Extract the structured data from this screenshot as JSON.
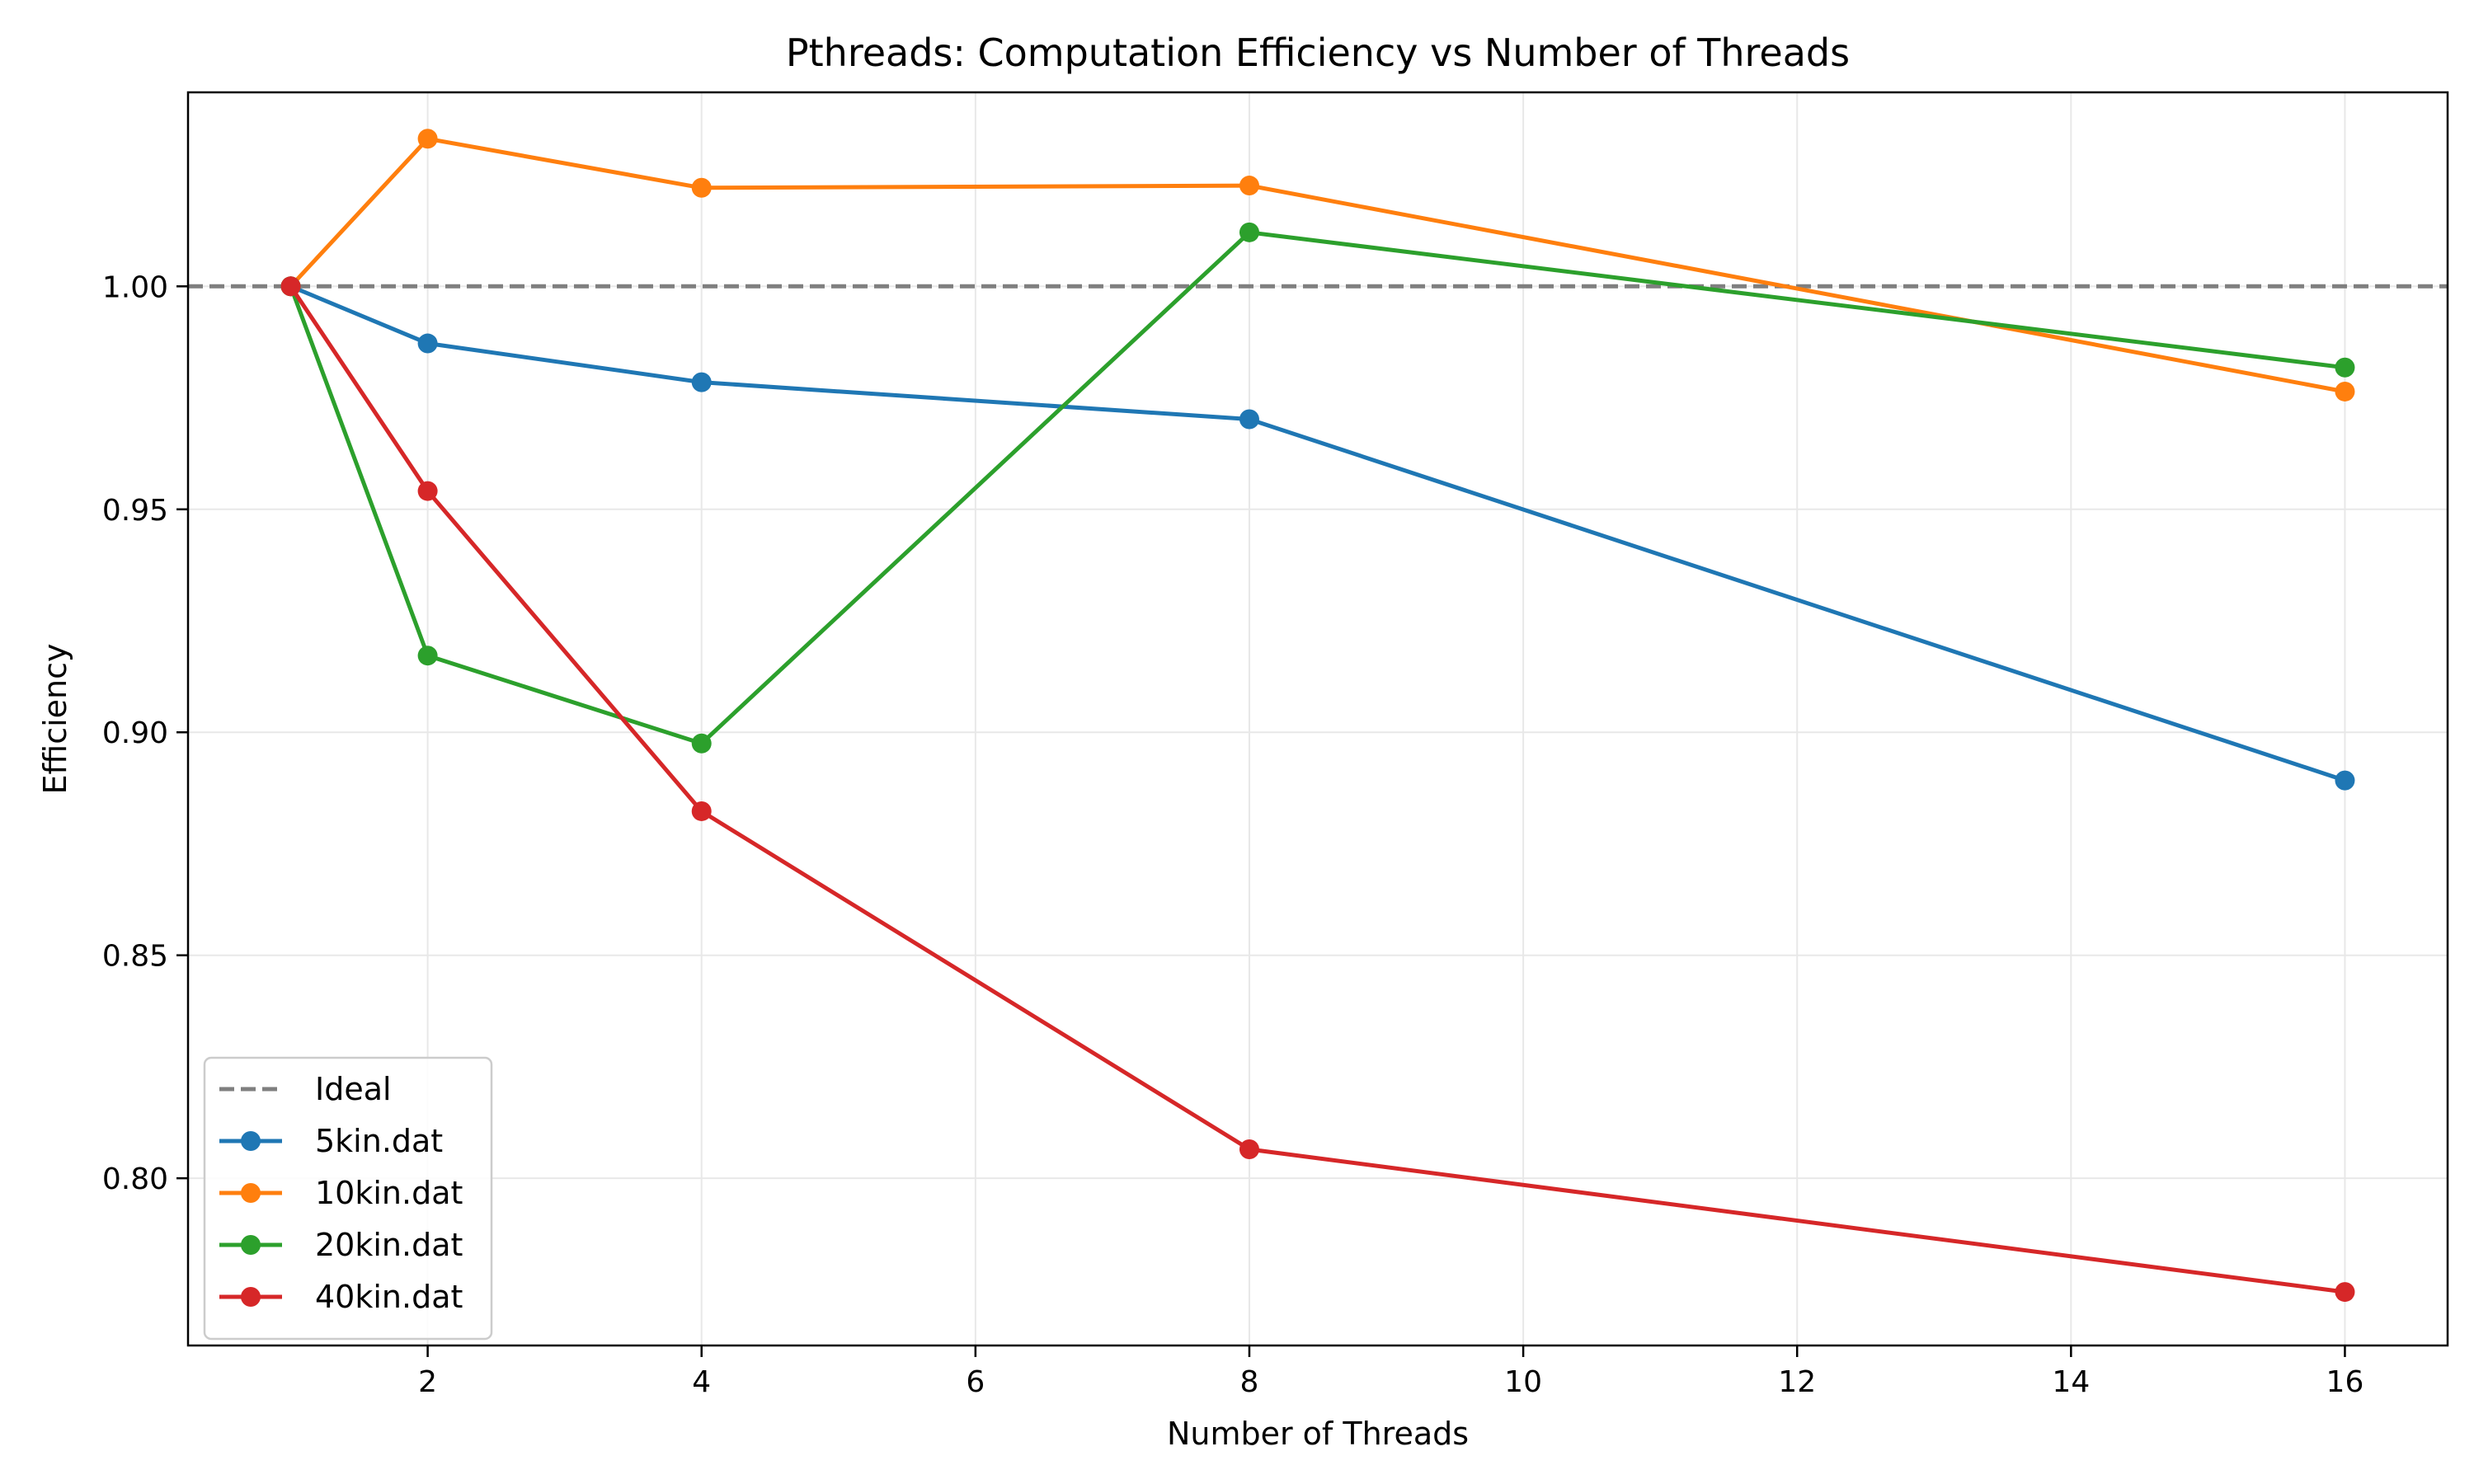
{
  "chart_data": {
    "type": "line",
    "title": "Pthreads: Computation Efficiency vs Number of Threads",
    "xlabel": "Number of Threads",
    "ylabel": "Efficiency",
    "xlim": [
      0.25,
      16.75
    ],
    "ylim": [
      0.7625,
      1.0435
    ],
    "xticks": [
      2,
      4,
      6,
      8,
      10,
      12,
      14,
      16
    ],
    "yticks": [
      0.8,
      0.85,
      0.9,
      0.95,
      1.0
    ],
    "xtick_labels": [
      "2",
      "4",
      "6",
      "8",
      "10",
      "12",
      "14",
      "16"
    ],
    "ytick_labels": [
      "0.80",
      "0.85",
      "0.90",
      "0.95",
      "1.00"
    ],
    "grid": true,
    "legend_position": "lower-left",
    "reference_line": {
      "name": "Ideal",
      "y": 1.0,
      "color": "#7f7f7f",
      "style": "dashed"
    },
    "x": [
      1,
      2,
      4,
      8,
      16
    ],
    "series": [
      {
        "name": "5kin.dat",
        "color": "#1f77b4",
        "values": [
          1.0,
          0.9872,
          0.9785,
          0.9702,
          0.8892
        ]
      },
      {
        "name": "10kin.dat",
        "color": "#ff7f0e",
        "values": [
          1.0,
          1.0331,
          1.0221,
          1.0226,
          0.9764
        ]
      },
      {
        "name": "20kin.dat",
        "color": "#2ca02c",
        "values": [
          1.0,
          0.9172,
          0.8975,
          1.0121,
          0.9818
        ]
      },
      {
        "name": "40kin.dat",
        "color": "#d62728",
        "values": [
          1.0,
          0.9541,
          0.8823,
          0.8065,
          0.7745
        ]
      }
    ]
  }
}
